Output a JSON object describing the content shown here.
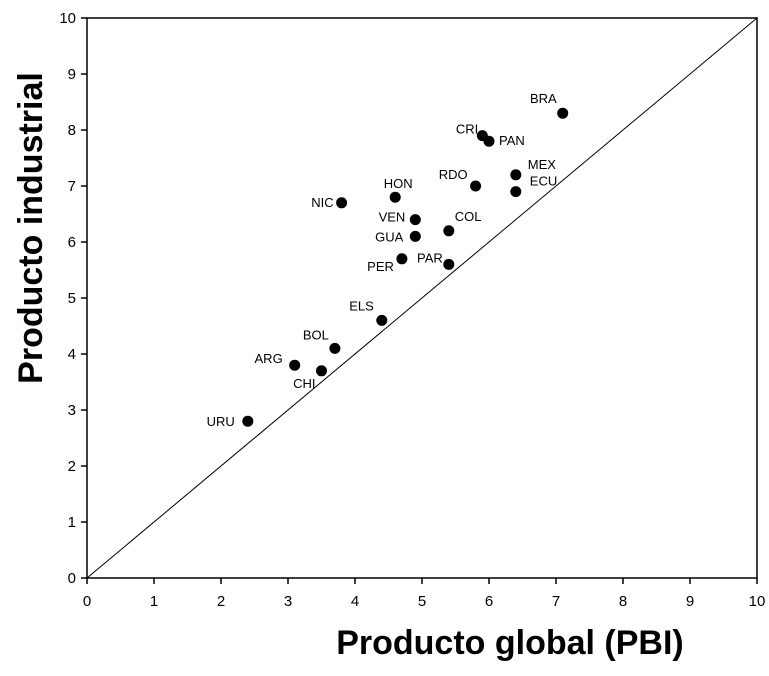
{
  "chart_data": {
    "type": "scatter",
    "xlabel": "Producto global (PBI)",
    "ylabel": "Producto industrial",
    "xlim": [
      0,
      10
    ],
    "ylim": [
      0,
      10
    ],
    "x_ticks": [
      "0",
      "1",
      "2",
      "3",
      "4",
      "5",
      "6",
      "7",
      "8",
      "9",
      "10"
    ],
    "y_ticks": [
      "0",
      "1",
      "2",
      "3",
      "4",
      "5",
      "6",
      "7",
      "8",
      "9",
      "10"
    ],
    "grid": false,
    "reference_line": {
      "from": [
        0,
        0
      ],
      "to": [
        10,
        10
      ]
    },
    "points": [
      {
        "label": "BRA",
        "x": 7.1,
        "y": 8.3
      },
      {
        "label": "CRI",
        "x": 5.9,
        "y": 7.9
      },
      {
        "label": "PAN",
        "x": 6.0,
        "y": 7.8
      },
      {
        "label": "MEX",
        "x": 6.4,
        "y": 7.2
      },
      {
        "label": "RDO",
        "x": 5.8,
        "y": 7.0
      },
      {
        "label": "ECU",
        "x": 6.4,
        "y": 6.9
      },
      {
        "label": "HON",
        "x": 4.6,
        "y": 6.8
      },
      {
        "label": "NIC",
        "x": 3.8,
        "y": 6.7
      },
      {
        "label": "VEN",
        "x": 4.9,
        "y": 6.4
      },
      {
        "label": "COL",
        "x": 5.4,
        "y": 6.2
      },
      {
        "label": "GUA",
        "x": 4.9,
        "y": 6.1
      },
      {
        "label": "PER",
        "x": 4.7,
        "y": 5.7
      },
      {
        "label": "PAR",
        "x": 5.4,
        "y": 5.6
      },
      {
        "label": "ELS",
        "x": 4.4,
        "y": 4.6
      },
      {
        "label": "BOL",
        "x": 3.7,
        "y": 4.1
      },
      {
        "label": "ARG",
        "x": 3.1,
        "y": 3.8
      },
      {
        "label": "CHI",
        "x": 3.5,
        "y": 3.7
      },
      {
        "label": "URU",
        "x": 2.4,
        "y": 2.8
      }
    ]
  }
}
